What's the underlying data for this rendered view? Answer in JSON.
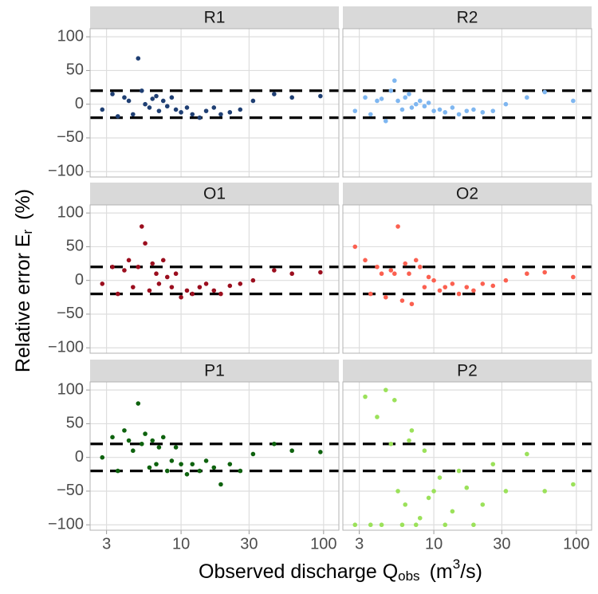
{
  "chart_data": {
    "type": "scatter",
    "xlabel": [
      "Observed discharge Q",
      "obs",
      "(m",
      "3",
      "/s)"
    ],
    "ylabel": [
      "Relative error E",
      "r",
      "(%)"
    ],
    "xscale": "log",
    "xlim": [
      2.3,
      128
    ],
    "ylim": [
      -108,
      112
    ],
    "xticks": [
      3,
      10,
      30,
      100
    ],
    "yticks": [
      {
        "value": -100,
        "label": "−100"
      },
      {
        "value": -50,
        "label": "−50"
      },
      0,
      50,
      100
    ],
    "reference_lines": [
      -20,
      20
    ],
    "grid": true,
    "x": [
      2.8,
      3.3,
      3.6,
      4.0,
      4.3,
      4.6,
      5.0,
      5.3,
      5.6,
      6.0,
      6.3,
      6.7,
      7.0,
      7.5,
      8.0,
      8.6,
      9.2,
      10,
      11,
      12,
      13.5,
      15,
      17,
      19,
      22,
      26,
      32,
      45,
      60,
      95
    ],
    "panels": [
      {
        "title": "R1",
        "color": "#1f3f73",
        "values": [
          -8,
          15,
          -18,
          10,
          5,
          -15,
          68,
          20,
          0,
          -5,
          8,
          12,
          -10,
          5,
          -3,
          10,
          -8,
          -12,
          -5,
          -15,
          -20,
          -10,
          -5,
          -15,
          -12,
          -8,
          5,
          15,
          10,
          12
        ]
      },
      {
        "title": "R2",
        "color": "#7eb6f0",
        "values": [
          -10,
          10,
          -15,
          5,
          8,
          -25,
          20,
          35,
          5,
          -8,
          10,
          15,
          -5,
          0,
          5,
          -3,
          2,
          -10,
          -8,
          -12,
          -5,
          -15,
          -10,
          -8,
          -12,
          -10,
          0,
          10,
          18,
          5
        ]
      },
      {
        "title": "O1",
        "color": "#9b0e1e",
        "values": [
          -5,
          20,
          -20,
          15,
          30,
          -10,
          20,
          80,
          55,
          -15,
          25,
          10,
          -5,
          30,
          5,
          -10,
          10,
          -25,
          -15,
          -20,
          -10,
          -5,
          -15,
          -20,
          -8,
          -5,
          0,
          15,
          10,
          12
        ]
      },
      {
        "title": "O2",
        "color": "#fb6050",
        "values": [
          50,
          30,
          -20,
          20,
          10,
          -25,
          15,
          10,
          80,
          -30,
          25,
          10,
          -35,
          30,
          20,
          -10,
          5,
          0,
          -15,
          -10,
          -5,
          -20,
          -10,
          -15,
          -5,
          -8,
          0,
          10,
          12,
          5
        ]
      },
      {
        "title": "P1",
        "color": "#0e620e",
        "values": [
          0,
          30,
          -20,
          40,
          25,
          10,
          80,
          20,
          35,
          -15,
          25,
          -10,
          15,
          30,
          -20,
          -5,
          15,
          -10,
          -25,
          -10,
          -20,
          -5,
          -15,
          -40,
          -10,
          -20,
          5,
          20,
          10,
          8
        ]
      },
      {
        "title": "P2",
        "color": "#9be15a",
        "values": [
          -100,
          90,
          -100,
          60,
          -100,
          100,
          20,
          85,
          -50,
          -100,
          -70,
          25,
          40,
          -100,
          -90,
          10,
          -60,
          -50,
          -30,
          -100,
          -80,
          -20,
          -45,
          -100,
          -70,
          -10,
          -50,
          5,
          -50,
          -40
        ]
      }
    ]
  }
}
